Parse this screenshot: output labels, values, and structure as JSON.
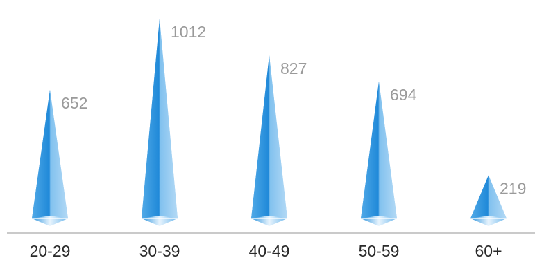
{
  "chart_data": {
    "type": "bar",
    "categories": [
      "20-29",
      "30-39",
      "40-49",
      "50-59",
      "60+"
    ],
    "values": [
      652,
      1012,
      827,
      694,
      219
    ],
    "ylim": [
      0,
      1100
    ],
    "grid": false,
    "legend": "none",
    "title": "",
    "xlabel": "",
    "ylabel": "",
    "colors": {
      "bar_light": "#a8d2f3",
      "bar_dark": "#1a86d6",
      "base": "#8ec6f0",
      "value_text": "#9a9a9a",
      "category_text": "#2a2a2a",
      "axis": "#b8b8b8"
    }
  }
}
